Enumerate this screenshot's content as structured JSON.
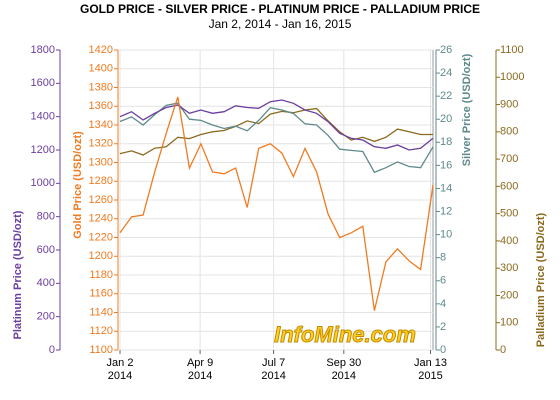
{
  "chart_data": {
    "type": "line",
    "title": "GOLD PRICE - SILVER PRICE - PLATINUM PRICE - PALLADIUM PRICE",
    "subtitle": "Jan 2, 2014 - Jan 16, 2015",
    "watermark": "InfoMine.com",
    "grid": true,
    "xlim": [
      "2014-01-02",
      "2015-01-16"
    ],
    "xticks": [
      {
        "value": "2014-01-02",
        "label": "Jan 2\n2014"
      },
      {
        "value": "2014-04-09",
        "label": "Apr 9\n2014"
      },
      {
        "value": "2014-07-07",
        "label": "Jul 7\n2014"
      },
      {
        "value": "2014-09-30",
        "label": "Sep 30\n2014"
      },
      {
        "value": "2015-01-13",
        "label": "Jan 13\n2015"
      }
    ],
    "axes": [
      {
        "label": "Platinum Price (USD/ozt)",
        "color": "#6b3fa0",
        "lim": [
          0,
          1800
        ],
        "ticks": [
          0,
          200,
          400,
          600,
          800,
          1000,
          1200,
          1400,
          1600,
          1800
        ]
      },
      {
        "label": "Gold Price (USD/ozt)",
        "color": "#f07b22",
        "lim": [
          1100,
          1420
        ],
        "ticks": [
          1100,
          1120,
          1140,
          1160,
          1180,
          1200,
          1220,
          1240,
          1260,
          1280,
          1300,
          1320,
          1340,
          1360,
          1380,
          1400,
          1420
        ]
      },
      {
        "label": "Silver Price (USD/ozt)",
        "color": "#5f8a8b",
        "lim": [
          0,
          26
        ],
        "ticks": [
          0,
          2,
          4,
          6,
          8,
          10,
          12,
          14,
          16,
          18,
          20,
          22,
          24,
          26
        ]
      },
      {
        "label": "Palladium Price (USD/ozt)",
        "color": "#8b6a1e",
        "lim": [
          0,
          1100
        ],
        "ticks": [
          0,
          100,
          200,
          300,
          400,
          500,
          600,
          700,
          800,
          900,
          1000,
          1100
        ]
      }
    ],
    "x": [
      "2014-01-02",
      "2014-01-16",
      "2014-01-30",
      "2014-02-13",
      "2014-02-27",
      "2014-03-13",
      "2014-03-27",
      "2014-04-10",
      "2014-04-24",
      "2014-05-08",
      "2014-05-22",
      "2014-06-05",
      "2014-06-19",
      "2014-07-03",
      "2014-07-17",
      "2014-07-31",
      "2014-08-14",
      "2014-08-28",
      "2014-09-11",
      "2014-09-25",
      "2014-10-09",
      "2014-10-23",
      "2014-11-06",
      "2014-11-20",
      "2014-12-04",
      "2014-12-18",
      "2015-01-01",
      "2015-01-16"
    ],
    "series": [
      {
        "name": "Palladium",
        "axis": 3,
        "color": "#8b6a1e",
        "values": [
          720,
          730,
          715,
          740,
          745,
          780,
          775,
          790,
          800,
          805,
          820,
          840,
          830,
          865,
          875,
          870,
          880,
          885,
          840,
          800,
          770,
          780,
          765,
          780,
          810,
          800,
          790,
          790
        ]
      },
      {
        "name": "Silver",
        "axis": 2,
        "color": "#5f8a8b",
        "values": [
          19.8,
          20.2,
          19.5,
          20.4,
          21.2,
          21.4,
          20.0,
          19.9,
          19.5,
          19.2,
          19.4,
          19.0,
          19.9,
          21.0,
          20.8,
          20.5,
          19.6,
          19.5,
          18.6,
          17.4,
          17.3,
          17.2,
          15.4,
          15.8,
          16.3,
          15.9,
          15.8,
          17.6
        ]
      },
      {
        "name": "Platinum",
        "axis": 0,
        "color": "#6b3fa0",
        "values": [
          1400,
          1430,
          1380,
          1420,
          1455,
          1470,
          1420,
          1440,
          1420,
          1430,
          1465,
          1455,
          1450,
          1490,
          1500,
          1480,
          1440,
          1420,
          1370,
          1300,
          1270,
          1260,
          1220,
          1210,
          1230,
          1200,
          1210,
          1270
        ]
      },
      {
        "name": "Gold",
        "axis": 1,
        "color": "#f07b22",
        "values": [
          1225,
          1242,
          1244,
          1290,
          1331,
          1370,
          1294,
          1320,
          1290,
          1288,
          1294,
          1252,
          1315,
          1320,
          1310,
          1285,
          1315,
          1290,
          1245,
          1220,
          1225,
          1232,
          1142,
          1194,
          1208,
          1195,
          1186,
          1276
        ]
      }
    ]
  }
}
